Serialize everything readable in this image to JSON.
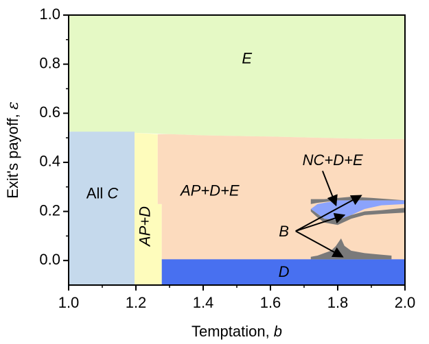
{
  "chart_data": {
    "type": "heatmap",
    "title": "",
    "xlabel": "Temptation, ",
    "xlabel_var": "b",
    "ylabel": "Exit's payoff, ",
    "ylabel_var": "ε",
    "xlim": [
      1.0,
      2.0
    ],
    "ylim": [
      -0.1,
      1.0
    ],
    "xticks": [
      1.0,
      1.2,
      1.4,
      1.6,
      1.8,
      2.0
    ],
    "xtick_labels": [
      "1.0",
      "1.2",
      "1.4",
      "1.6",
      "1.8",
      "2.0"
    ],
    "yticks": [
      0.0,
      0.2,
      0.4,
      0.6,
      0.8,
      1.0
    ],
    "ytick_labels": [
      "0.0",
      "0.2",
      "0.4",
      "0.6",
      "0.8",
      "1.0"
    ],
    "grid": false,
    "colors": {
      "E": "#e5f9c5",
      "AllC": "#c5d9ec",
      "APD": "#fefcbc",
      "APDE": "#fcdbbe",
      "D": "#4870f0",
      "NCDE": "#8ba3fc",
      "B": "#7a7a7a"
    },
    "regions": [
      {
        "id": "E",
        "polygon": [
          [
            1.0,
            1.0
          ],
          [
            2.0,
            1.0
          ],
          [
            2.0,
            0.495
          ],
          [
            1.9,
            0.495
          ],
          [
            1.75,
            0.5
          ],
          [
            1.6,
            0.505
          ],
          [
            1.4,
            0.51
          ],
          [
            1.3,
            0.515
          ],
          [
            1.2,
            0.52
          ],
          [
            1.0,
            0.525
          ]
        ]
      },
      {
        "id": "AllC",
        "polygon": [
          [
            1.0,
            -0.1
          ],
          [
            1.196,
            -0.1
          ],
          [
            1.196,
            0.525
          ],
          [
            1.0,
            0.525
          ]
        ]
      },
      {
        "id": "APD",
        "polygon": [
          [
            1.196,
            -0.1
          ],
          [
            1.277,
            -0.1
          ],
          [
            1.277,
            0.23
          ],
          [
            1.265,
            0.23
          ],
          [
            1.265,
            0.515
          ],
          [
            1.196,
            0.52
          ]
        ]
      },
      {
        "id": "APDE",
        "polygon": [
          [
            1.277,
            0.0
          ],
          [
            2.0,
            0.0
          ],
          [
            2.0,
            0.495
          ],
          [
            1.9,
            0.495
          ],
          [
            1.75,
            0.5
          ],
          [
            1.6,
            0.505
          ],
          [
            1.4,
            0.51
          ],
          [
            1.3,
            0.515
          ],
          [
            1.265,
            0.515
          ],
          [
            1.265,
            0.23
          ],
          [
            1.277,
            0.23
          ]
        ]
      },
      {
        "id": "D",
        "polygon": [
          [
            1.277,
            -0.1
          ],
          [
            2.0,
            -0.1
          ],
          [
            2.0,
            0.005
          ],
          [
            1.277,
            0.005
          ]
        ]
      },
      {
        "id": "NCDE",
        "polygon": [
          [
            1.72,
            0.21
          ],
          [
            1.74,
            0.23
          ],
          [
            1.8,
            0.245
          ],
          [
            2.0,
            0.245
          ],
          [
            2.0,
            0.23
          ],
          [
            1.93,
            0.225
          ],
          [
            1.88,
            0.21
          ],
          [
            1.84,
            0.185
          ],
          [
            1.8,
            0.165
          ],
          [
            1.76,
            0.17
          ],
          [
            1.74,
            0.19
          ]
        ]
      },
      {
        "id": "B",
        "polygon": [
          [
            1.72,
            0.21
          ],
          [
            1.74,
            0.19
          ],
          [
            1.76,
            0.17
          ],
          [
            1.8,
            0.165
          ],
          [
            1.84,
            0.185
          ],
          [
            1.88,
            0.2
          ],
          [
            1.93,
            0.205
          ],
          [
            2.0,
            0.215
          ],
          [
            2.0,
            0.195
          ],
          [
            1.93,
            0.19
          ],
          [
            1.88,
            0.185
          ],
          [
            1.84,
            0.17
          ],
          [
            1.8,
            0.145
          ],
          [
            1.76,
            0.155
          ],
          [
            1.74,
            0.175
          ],
          [
            1.72,
            0.2
          ]
        ]
      },
      {
        "id": "B",
        "polygon": [
          [
            1.72,
            0.25
          ],
          [
            1.76,
            0.25
          ],
          [
            1.84,
            0.26
          ],
          [
            1.9,
            0.255
          ],
          [
            2.0,
            0.245
          ],
          [
            1.9,
            0.245
          ],
          [
            1.8,
            0.245
          ],
          [
            1.74,
            0.235
          ],
          [
            1.72,
            0.23
          ]
        ]
      },
      {
        "id": "B",
        "polygon": [
          [
            1.72,
            0.005
          ],
          [
            1.96,
            0.005
          ],
          [
            1.96,
            0.02
          ],
          [
            1.92,
            0.025
          ],
          [
            1.88,
            0.03
          ],
          [
            1.84,
            0.04
          ],
          [
            1.82,
            0.06
          ],
          [
            1.81,
            0.09
          ],
          [
            1.795,
            0.06
          ],
          [
            1.78,
            0.04
          ],
          [
            1.76,
            0.03
          ],
          [
            1.74,
            0.02
          ],
          [
            1.72,
            0.015
          ]
        ]
      }
    ],
    "annotations": [
      {
        "id": "E",
        "text": "E",
        "x": 1.53,
        "y": 0.82
      },
      {
        "id": "AllC",
        "text": "All ",
        "text_var": "C",
        "x": 1.1,
        "y": 0.27
      },
      {
        "id": "APD",
        "text": "AP+D",
        "x": 1.23,
        "y": 0.14,
        "rotate": -90
      },
      {
        "id": "APDE",
        "text": "AP+D+E",
        "x": 1.42,
        "y": 0.28
      },
      {
        "id": "NCDE",
        "text": "NC+D+E",
        "x": 1.785,
        "y": 0.405
      },
      {
        "id": "B",
        "text": "B",
        "x": 1.64,
        "y": 0.115
      },
      {
        "id": "D",
        "text": "D",
        "x": 1.64,
        "y": -0.05
      }
    ],
    "arrows": [
      {
        "from": [
          1.755,
          0.365
        ],
        "to": [
          1.795,
          0.225
        ]
      },
      {
        "from": [
          1.675,
          0.12
        ],
        "to": [
          1.87,
          0.265
        ]
      },
      {
        "from": [
          1.675,
          0.12
        ],
        "to": [
          1.82,
          0.185
        ]
      },
      {
        "from": [
          1.675,
          0.12
        ],
        "to": [
          1.815,
          0.015
        ]
      }
    ]
  }
}
